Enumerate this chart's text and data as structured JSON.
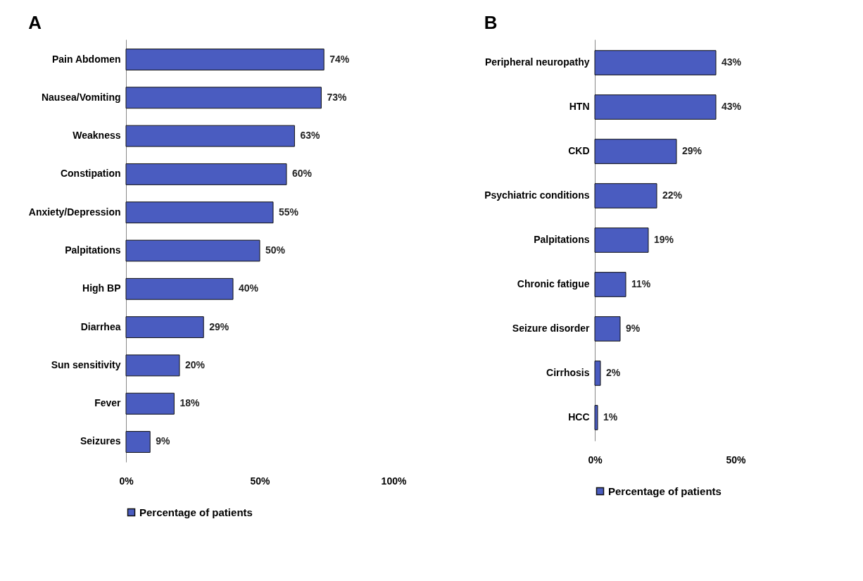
{
  "chart_data": [
    {
      "type": "bar",
      "title": "A",
      "orientation": "horizontal",
      "categories": [
        "Pain Abdomen",
        "Nausea/Vomiting",
        "Weakness",
        "Constipation",
        "Anxiety/Depression",
        "Palpitations",
        "High BP",
        "Diarrhea",
        "Sun sensitivity",
        "Fever",
        "Seizures"
      ],
      "series": [
        {
          "name": "Percentage of patients",
          "color": "#4a5cc0",
          "values": [
            74,
            73,
            63,
            60,
            55,
            50,
            40,
            29,
            20,
            18,
            9
          ],
          "value_labels": [
            "74%",
            "73%",
            "63%",
            "60%",
            "55%",
            "50%",
            "40%",
            "29%",
            "20%",
            "18%",
            "9%"
          ]
        }
      ],
      "xlim": [
        0,
        100
      ],
      "xticks": [
        {
          "value": 0,
          "label": "0%"
        },
        {
          "value": 50,
          "label": "50%"
        },
        {
          "value": 100,
          "label": "100%"
        }
      ],
      "grid": false,
      "legend": "bottom"
    },
    {
      "type": "bar",
      "title": "B",
      "orientation": "horizontal",
      "categories": [
        "Peripheral neuropathy",
        "HTN",
        "CKD",
        "Psychiatric conditions",
        "Palpitations",
        "Chronic fatigue",
        "Seizure disorder",
        "Cirrhosis",
        "HCC"
      ],
      "series": [
        {
          "name": "Percentage of patients",
          "color": "#4a5cc0",
          "values": [
            43,
            43,
            29,
            22,
            19,
            11,
            9,
            2,
            1
          ],
          "value_labels": [
            "43%",
            "43%",
            "29%",
            "22%",
            "19%",
            "11%",
            "9%",
            "2%",
            "1%"
          ]
        }
      ],
      "xlim": [
        0,
        50
      ],
      "xticks": [
        {
          "value": 0,
          "label": "0%"
        },
        {
          "value": 50,
          "label": "50%"
        }
      ],
      "grid": false,
      "legend": "bottom right"
    }
  ]
}
